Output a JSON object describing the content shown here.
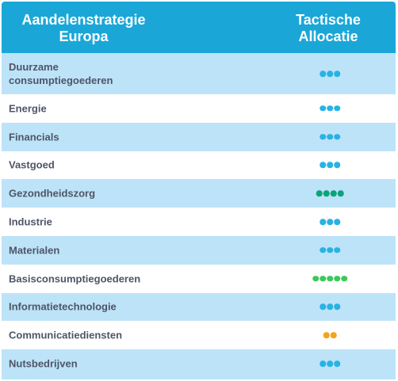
{
  "header": {
    "col1_line1": "Aandelenstrategie",
    "col1_line2": "Europa",
    "col2_line1": "Tactische",
    "col2_line2": "Allocatie"
  },
  "colors": {
    "header": "#1aa7d8",
    "row_shade": "#bde3f8",
    "dot_blue": "#29b2e4",
    "dot_teal": "#0ba47a",
    "dot_green": "#3bc95b",
    "dot_orange": "#f5a41a"
  },
  "rows": [
    {
      "label_line1": "Duurzame",
      "label_line2": "consumptiegoederen",
      "dots": 3,
      "dot_color": "blue"
    },
    {
      "label_line1": "Energie",
      "label_line2": "",
      "dots": 3,
      "dot_color": "blue"
    },
    {
      "label_line1": "Financials",
      "label_line2": "",
      "dots": 3,
      "dot_color": "blue"
    },
    {
      "label_line1": "Vastgoed",
      "label_line2": "",
      "dots": 3,
      "dot_color": "blue"
    },
    {
      "label_line1": "Gezondheidszorg",
      "label_line2": "",
      "dots": 4,
      "dot_color": "teal"
    },
    {
      "label_line1": "Industrie",
      "label_line2": "",
      "dots": 3,
      "dot_color": "blue"
    },
    {
      "label_line1": "Materialen",
      "label_line2": "",
      "dots": 3,
      "dot_color": "blue"
    },
    {
      "label_line1": "Basisconsumptiegoederen",
      "label_line2": "",
      "dots": 5,
      "dot_color": "green"
    },
    {
      "label_line1": "Informatietechnologie",
      "label_line2": "",
      "dots": 3,
      "dot_color": "blue"
    },
    {
      "label_line1": "Communicatiediensten",
      "label_line2": "",
      "dots": 2,
      "dot_color": "orange"
    },
    {
      "label_line1": "Nutsbedrijven",
      "label_line2": "",
      "dots": 3,
      "dot_color": "blue"
    }
  ]
}
